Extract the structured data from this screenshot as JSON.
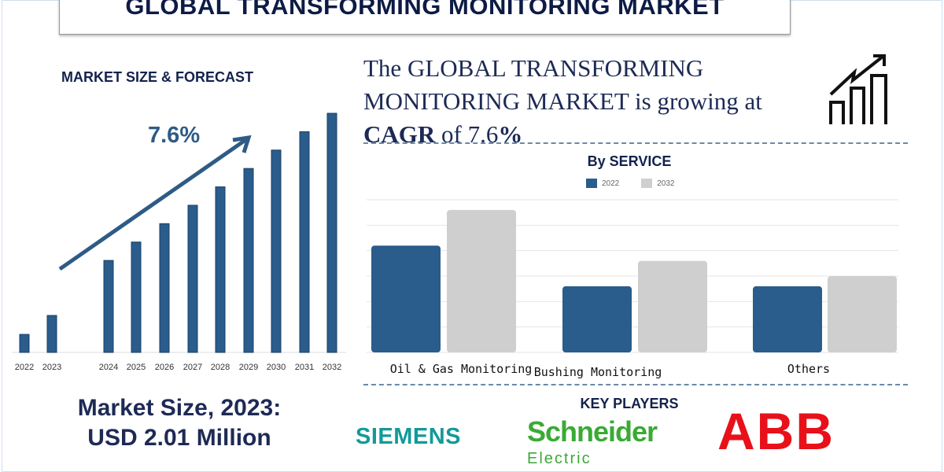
{
  "title": "GLOBAL TRANSFORMING MONITORING MARKET",
  "left_heading": "MARKET SIZE & FORECAST",
  "cagr_label": "7.6%",
  "headline": {
    "line1": "The GLOBAL TRANSFORMING",
    "line2": "MONITORING MARKET is growing at",
    "cagr_word": "CAGR",
    "of": " of 7.6",
    "pct": "%"
  },
  "icon": "bar-chart-growth-arrow-icon",
  "market_size": {
    "line1": "Market Size, 2023:",
    "line2": "USD 2.01 Million"
  },
  "key_players": {
    "heading": "KEY PLAYERS",
    "players": [
      "SIEMENS",
      "Schneider Electric",
      "ABB"
    ]
  },
  "colors": {
    "navy": "#13224d",
    "bar_blue": "#2a5c8c",
    "bar_gray": "#cfcfcf",
    "siemens": "#139a9a",
    "schneider": "#3aaa35",
    "abb": "#e8111a"
  },
  "chart_data": [
    {
      "type": "bar",
      "title": "MARKET SIZE & FORECAST",
      "categories": [
        "2022",
        "2023",
        "2024",
        "2025",
        "2026",
        "2027",
        "2028",
        "2029",
        "2030",
        "2031",
        "2032"
      ],
      "values": [
        0.98,
        2.01,
        5.0,
        6.0,
        7.0,
        8.0,
        9.0,
        10.0,
        11.0,
        12.0,
        13.0
      ],
      "annotation": "7.6%",
      "grid": false
    },
    {
      "type": "bar",
      "title": "By SERVICE",
      "categories": [
        "Oil & Gas Monitoring",
        "Bushing Monitoring",
        "Others"
      ],
      "series": [
        {
          "name": "2022",
          "values": [
            4.2,
            2.6,
            2.6
          ],
          "color": "#2a5c8c"
        },
        {
          "name": "2032",
          "values": [
            5.6,
            3.6,
            3.0
          ],
          "color": "#cfcfcf"
        }
      ],
      "ylim": [
        0,
        6
      ],
      "grid": true,
      "legend": "top-center"
    }
  ]
}
